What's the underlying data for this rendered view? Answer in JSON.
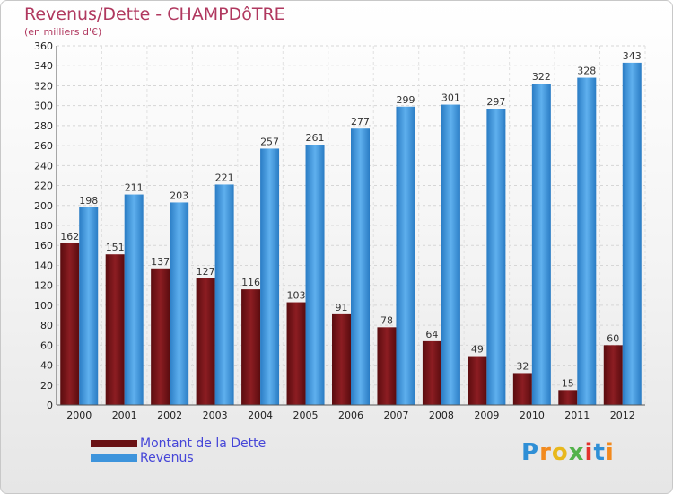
{
  "title": "Revenus/Dette - CHAMPDôTRE",
  "subtitle": "(en milliers d'€)",
  "logo": "Proxiti",
  "colors": {
    "dette": "#7a1518",
    "revenus": "#3d94dc",
    "title": "#b0385f",
    "legend_text": "#4545d8"
  },
  "chart_data": {
    "type": "bar",
    "title": "Revenus/Dette - CHAMPDôTRE",
    "ylabel": "(en milliers d'€)",
    "xlabel": "",
    "ylim": [
      0,
      360
    ],
    "ytick_step": 20,
    "grid": true,
    "legend_position": "bottom-left",
    "categories": [
      "2000",
      "2001",
      "2002",
      "2003",
      "2004",
      "2005",
      "2006",
      "2007",
      "2008",
      "2009",
      "2010",
      "2011",
      "2012"
    ],
    "series": [
      {
        "name": "Montant de la Dette",
        "values": [
          162,
          151,
          137,
          127,
          116,
          103,
          91,
          78,
          64,
          49,
          32,
          15,
          60
        ]
      },
      {
        "name": "Revenus",
        "values": [
          198,
          211,
          203,
          221,
          257,
          261,
          277,
          299,
          301,
          297,
          322,
          328,
          343
        ]
      }
    ]
  }
}
